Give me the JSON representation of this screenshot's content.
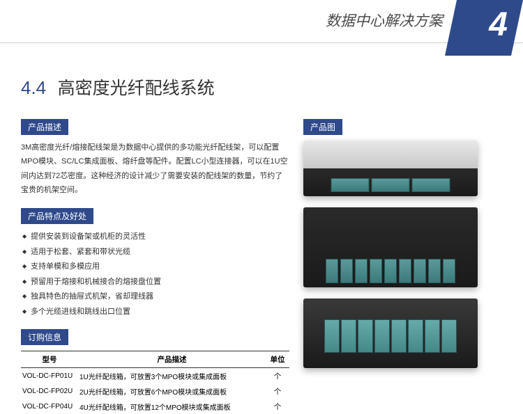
{
  "header": {
    "title": "数据中心解决方案",
    "page_number": "4"
  },
  "section": {
    "number": "4.4",
    "title": "高密度光纤配线系统"
  },
  "subheaders": {
    "description": "产品描述",
    "image": "产品图",
    "features": "产品特点及好处",
    "ordering": "订购信息"
  },
  "description": "3M高密度光纤/熔接配线架是为数据中心提供的多功能光纤配线架，可以配置MPO模块、SC/LC集成面板、熔纤盘等配件。配置LC小型连接器，可以在1U空间内达到72芯密度。这种经济的设计减少了需要安装的配线架的数量，节约了宝贵的机架空间。",
  "features": [
    "提供安装到设备架或机柜的灵活性",
    "适用于松套、紧套和带状光缆",
    "支持单模和多模应用",
    "预留用于熔接和机械接合的熔接盘位置",
    "独具特色的抽屉式机架，省却理线器",
    "多个光缆进线和跳线出口位置"
  ],
  "table": {
    "headers": [
      "型号",
      "产品描述",
      "单位"
    ],
    "rows": [
      [
        "VOL-DC-FP01U",
        "1U光纤配线箱，可放置3个MPO模块或集成面板",
        "个"
      ],
      [
        "VOL-DC-FP02U",
        "2U光纤配线箱，可放置6个MPO模块或集成面板",
        "个"
      ],
      [
        "VOL-DC-FP04U",
        "4U光纤配线箱，可放置12个MPO模块或集成面板",
        "个"
      ]
    ]
  },
  "colors": {
    "brand": "#2e4a8b",
    "text": "#333333",
    "header_text": "#4a4a4a"
  }
}
